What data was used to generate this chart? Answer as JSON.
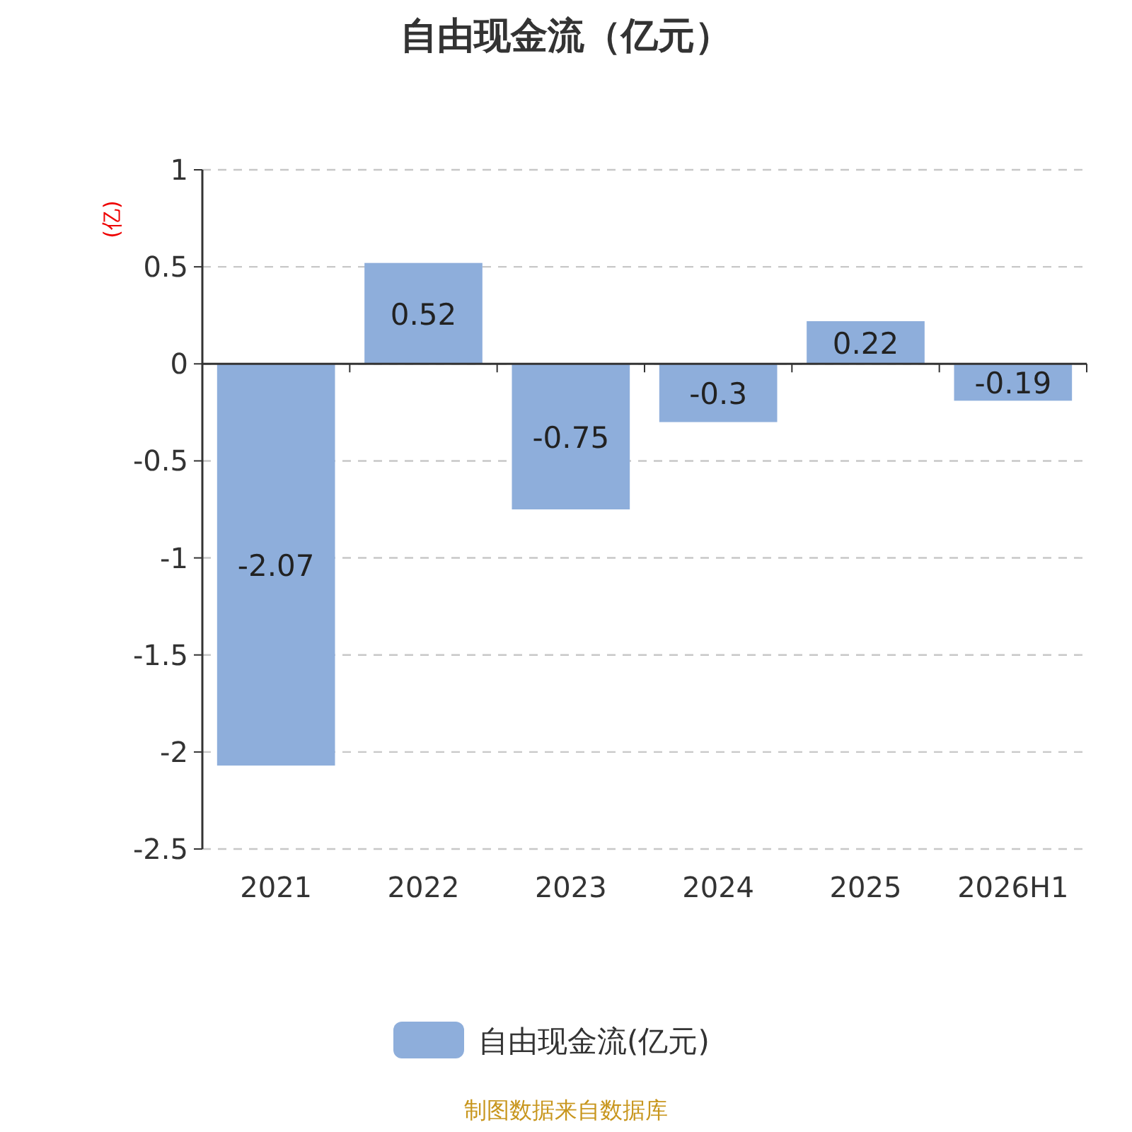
{
  "chart_data": {
    "type": "bar",
    "title": "自由现金流（亿元）",
    "ylabel": "(亿)",
    "categories": [
      "2021",
      "2022",
      "2023",
      "2024",
      "2025",
      "2026H1"
    ],
    "series": [
      {
        "name": "自由现金流(亿元)",
        "color": "#8eaedb",
        "values": [
          -2.07,
          0.52,
          -0.75,
          -0.3,
          0.22,
          -0.19
        ]
      }
    ],
    "ylim": [
      -2.5,
      1
    ],
    "yticks": [
      -2.5,
      -2,
      -1.5,
      -1,
      -0.5,
      0,
      0.5,
      1
    ],
    "grid": "y",
    "legend": "bottom",
    "data_labels": true,
    "annotations": [
      "制图数据来自数据库"
    ]
  }
}
